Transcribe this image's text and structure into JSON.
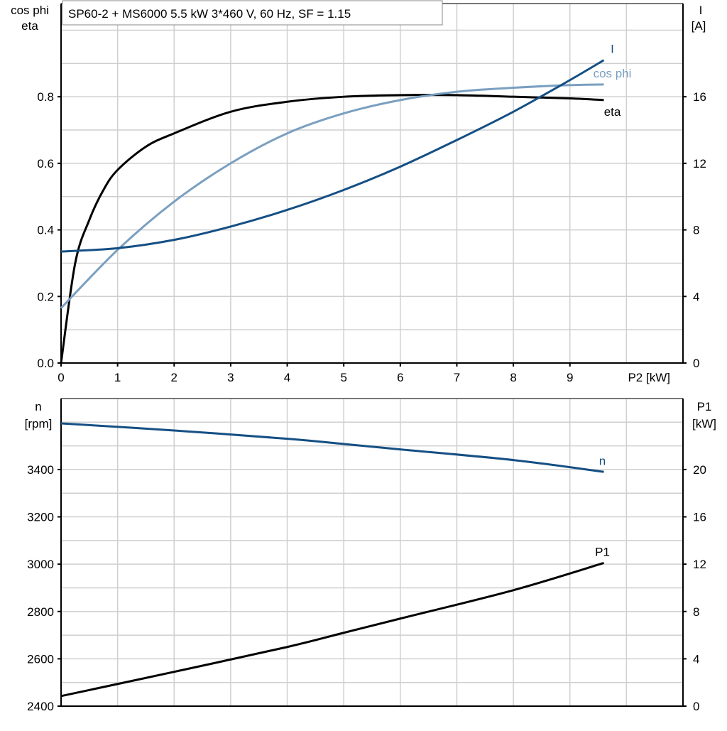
{
  "chart_data": [
    {
      "type": "line",
      "title": "SP60-2 + MS6000   5.5 kW   3*460 V, 60 Hz, SF = 1.15",
      "xlabel": "P2 [kW]",
      "ylabel_left": [
        "cos phi",
        "eta"
      ],
      "ylabel_right": [
        "I",
        "[A]"
      ],
      "xlim": [
        0,
        11
      ],
      "ylim_left": [
        0,
        1.08
      ],
      "ylim_right": [
        0,
        21.6
      ],
      "x_ticks": [
        "0",
        "1",
        "2",
        "3",
        "4",
        "5",
        "6",
        "7",
        "8",
        "9"
      ],
      "y_ticks_left": [
        "0.0",
        "0.2",
        "0.4",
        "0.6",
        "0.8"
      ],
      "y_ticks_right": [
        "0",
        "4",
        "8",
        "12",
        "16"
      ],
      "grid": true,
      "series": [
        {
          "name": "eta",
          "axis": "left",
          "color": "#000000",
          "x": [
            0,
            0.25,
            0.5,
            0.75,
            1,
            1.5,
            2,
            3,
            4,
            5,
            6,
            7,
            8,
            9,
            9.6
          ],
          "y": [
            0,
            0.3,
            0.43,
            0.52,
            0.58,
            0.65,
            0.69,
            0.755,
            0.785,
            0.8,
            0.805,
            0.805,
            0.8,
            0.795,
            0.79
          ]
        },
        {
          "name": "cos phi",
          "axis": "left",
          "color": "#7a9fc0",
          "x": [
            0,
            1,
            2,
            3,
            4,
            5,
            6,
            7,
            8,
            9,
            9.6
          ],
          "y": [
            0.165,
            0.34,
            0.485,
            0.6,
            0.69,
            0.75,
            0.79,
            0.815,
            0.827,
            0.835,
            0.837
          ]
        },
        {
          "name": "I",
          "axis": "right",
          "color": "#154f84",
          "x": [
            0,
            1,
            2,
            3,
            4,
            5,
            6,
            7,
            8,
            9,
            9.6
          ],
          "y": [
            6.7,
            6.9,
            7.4,
            8.2,
            9.2,
            10.4,
            11.8,
            13.4,
            15.1,
            17.0,
            18.2
          ]
        }
      ]
    },
    {
      "type": "line",
      "xlabel": "",
      "ylabel_left": [
        "n",
        "[rpm]"
      ],
      "ylabel_right": [
        "P1",
        "[kW]"
      ],
      "xlim": [
        0,
        11
      ],
      "ylim_left": [
        2400,
        3700
      ],
      "ylim_right": [
        0,
        26
      ],
      "y_ticks_left": [
        "2400",
        "2600",
        "2800",
        "3000",
        "3200",
        "3400"
      ],
      "y_ticks_right": [
        "0",
        "4",
        "8",
        "12",
        "16",
        "20"
      ],
      "grid": true,
      "series": [
        {
          "name": "n",
          "axis": "left",
          "color": "#154f84",
          "x": [
            0,
            2,
            4,
            5,
            6,
            8,
            9.6
          ],
          "y": [
            3595,
            3565,
            3530,
            3508,
            3485,
            3440,
            3390
          ]
        },
        {
          "name": "P1",
          "axis": "right",
          "color": "#000000",
          "x": [
            0,
            2,
            4,
            5,
            6,
            8,
            9.6
          ],
          "y": [
            0.85,
            2.9,
            5.0,
            6.2,
            7.4,
            9.8,
            12.1
          ]
        }
      ]
    }
  ]
}
